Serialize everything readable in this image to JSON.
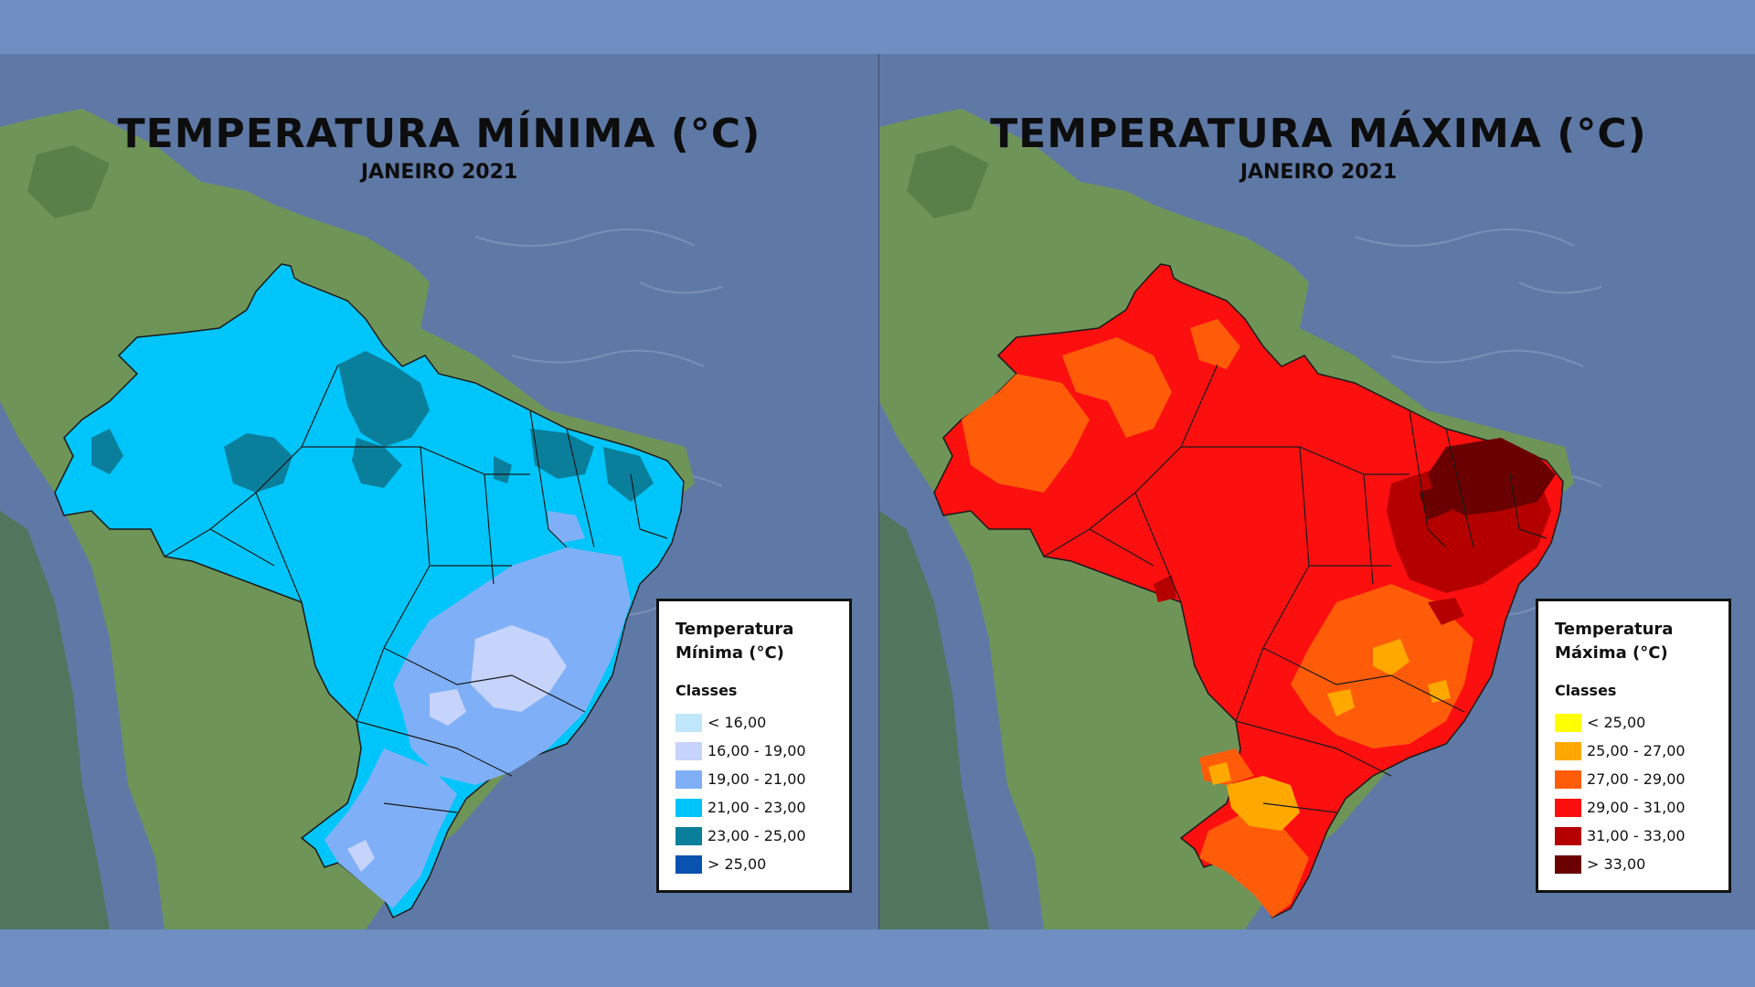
{
  "maps": [
    {
      "title": "TEMPERATURA MÍNIMA (°C)",
      "subtitle": "JANEIRO 2021",
      "legend": {
        "title_line1": "Temperatura",
        "title_line2": "Mínima (°C)",
        "classes_label": "Classes",
        "items": [
          {
            "label": "< 16,00",
            "color": "#bfe6fb"
          },
          {
            "label": "16,00 - 19,00",
            "color": "#c6d3fb"
          },
          {
            "label": "19,00 - 21,00",
            "color": "#7fb0f7"
          },
          {
            "label": "21,00 - 23,00",
            "color": "#00c5fa"
          },
          {
            "label": "23,00 - 25,00",
            "color": "#0a7f9c"
          },
          {
            "label": "> 25,00",
            "color": "#0952b0"
          }
        ]
      }
    },
    {
      "title": "TEMPERATURA MÁXIMA (°C)",
      "subtitle": "JANEIRO 2021",
      "legend": {
        "title_line1": "Temperatura",
        "title_line2": "Máxima (°C)",
        "classes_label": "Classes",
        "items": [
          {
            "label": "< 25,00",
            "color": "#ffff00"
          },
          {
            "label": "25,00 - 27,00",
            "color": "#ffa800"
          },
          {
            "label": "27,00 - 29,00",
            "color": "#ff5c0a"
          },
          {
            "label": "29,00 - 31,00",
            "color": "#fc0f0f"
          },
          {
            "label": "31,00 - 33,00",
            "color": "#b50000"
          },
          {
            "label": "> 33,00",
            "color": "#6b0000"
          }
        ]
      }
    }
  ],
  "colors": {
    "ocean": "#5f79a6",
    "land": "#6f9458",
    "land_dark": "#4d7340",
    "background": "#6f8fc2",
    "state_border": "#1a1a1a"
  }
}
